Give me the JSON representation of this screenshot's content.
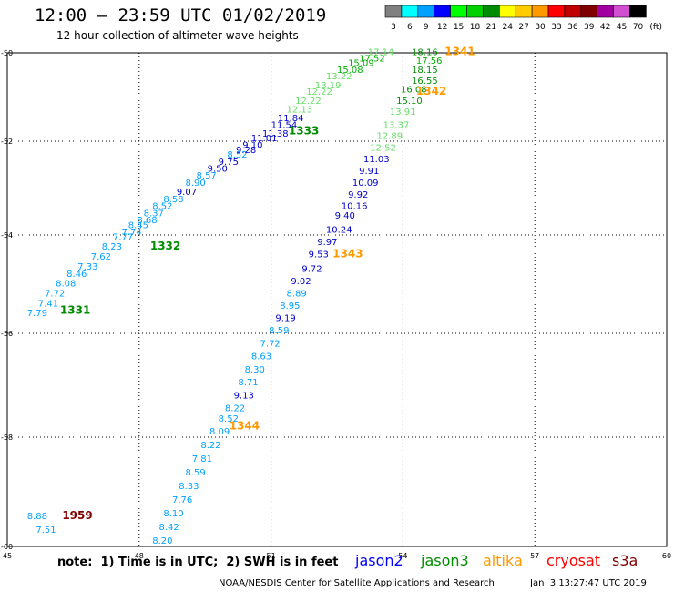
{
  "header": {
    "title": "12:00 — 23:59 UTC 01/02/2019",
    "subtitle": "12 hour collection of altimeter wave heights"
  },
  "colorbar": {
    "unit_label": "(ft)",
    "bins": [
      {
        "label": "3",
        "color": "#808080"
      },
      {
        "label": "6",
        "color": "#00ffff"
      },
      {
        "label": "9",
        "color": "#00a0ff"
      },
      {
        "label": "12",
        "color": "#0000ff"
      },
      {
        "label": "15",
        "color": "#00ff00"
      },
      {
        "label": "18",
        "color": "#00d000"
      },
      {
        "label": "21",
        "color": "#008c00"
      },
      {
        "label": "24",
        "color": "#ffff00"
      },
      {
        "label": "27",
        "color": "#ffcc00"
      },
      {
        "label": "30",
        "color": "#ff9900"
      },
      {
        "label": "33",
        "color": "#ff0000"
      },
      {
        "label": "36",
        "color": "#c00000"
      },
      {
        "label": "39",
        "color": "#800000"
      },
      {
        "label": "42",
        "color": "#a000a0"
      },
      {
        "label": "45",
        "color": "#d050d0"
      },
      {
        "label": "70",
        "color": "#000000"
      }
    ]
  },
  "axes": {
    "lon_ticks": [
      "45",
      "48",
      "51",
      "54",
      "57",
      "60"
    ],
    "lat_ticks": [
      "-50",
      "-52",
      "-54",
      "-56",
      "-58",
      "-60"
    ]
  },
  "passes": [
    {
      "label": "1331",
      "color": "#008c00",
      "lon": 46.2,
      "lat": -55.6
    },
    {
      "label": "1332",
      "color": "#008c00",
      "lon": 48.25,
      "lat": -54.3
    },
    {
      "label": "1333",
      "color": "#008c00",
      "lon": 51.4,
      "lat": -51.85
    },
    {
      "label": "1341",
      "color": "#ff9900",
      "lon": 54.95,
      "lat": -50.05
    },
    {
      "label": "1342",
      "color": "#ff9900",
      "lon": 54.3,
      "lat": -50.95
    },
    {
      "label": "1343",
      "color": "#ff9900",
      "lon": 52.4,
      "lat": -54.45
    },
    {
      "label": "1344",
      "color": "#ff9900",
      "lon": 50.05,
      "lat": -57.85
    },
    {
      "label": "1959",
      "color": "#800000",
      "lon": 46.25,
      "lat": -59.5
    }
  ],
  "observations": [
    {
      "v": "7.79",
      "c": "#00a0ff",
      "lon": 45.45,
      "lat": -55.65
    },
    {
      "v": "7.41",
      "c": "#00a0ff",
      "lon": 45.7,
      "lat": -55.45
    },
    {
      "v": "7.72",
      "c": "#00a0ff",
      "lon": 45.85,
      "lat": -55.25
    },
    {
      "v": "8.08",
      "c": "#00a0ff",
      "lon": 46.1,
      "lat": -55.05
    },
    {
      "v": "8.46",
      "c": "#00a0ff",
      "lon": 46.35,
      "lat": -54.85
    },
    {
      "v": "7.33",
      "c": "#00a0ff",
      "lon": 46.6,
      "lat": -54.7
    },
    {
      "v": "7.62",
      "c": "#00a0ff",
      "lon": 46.9,
      "lat": -54.5
    },
    {
      "v": "8.23",
      "c": "#00a0ff",
      "lon": 47.15,
      "lat": -54.3
    },
    {
      "v": "7.77",
      "c": "#00a0ff",
      "lon": 47.4,
      "lat": -54.1
    },
    {
      "v": "7.74",
      "c": "#00a0ff",
      "lon": 47.6,
      "lat": -54.0
    },
    {
      "v": "8.45",
      "c": "#00a0ff",
      "lon": 47.75,
      "lat": -53.85
    },
    {
      "v": "8.68",
      "c": "#00a0ff",
      "lon": 47.95,
      "lat": -53.75
    },
    {
      "v": "8.37",
      "c": "#00a0ff",
      "lon": 48.1,
      "lat": -53.6
    },
    {
      "v": "8.52",
      "c": "#00a0ff",
      "lon": 48.3,
      "lat": -53.45
    },
    {
      "v": "8.58",
      "c": "#00a0ff",
      "lon": 48.55,
      "lat": -53.3
    },
    {
      "v": "9.07",
      "c": "#0000c8",
      "lon": 48.85,
      "lat": -53.15
    },
    {
      "v": "8.90",
      "c": "#00a0ff",
      "lon": 49.05,
      "lat": -52.95
    },
    {
      "v": "8.57",
      "c": "#00a0ff",
      "lon": 49.3,
      "lat": -52.8
    },
    {
      "v": "9.50",
      "c": "#0000c8",
      "lon": 49.55,
      "lat": -52.65
    },
    {
      "v": "9.75",
      "c": "#0000c8",
      "lon": 49.8,
      "lat": -52.5
    },
    {
      "v": "8.52",
      "c": "#00a0ff",
      "lon": 50.0,
      "lat": -52.35
    },
    {
      "v": "9.28",
      "c": "#0000c8",
      "lon": 50.2,
      "lat": -52.25
    },
    {
      "v": "9.10",
      "c": "#0000c8",
      "lon": 50.35,
      "lat": -52.15
    },
    {
      "v": "11.01",
      "c": "#0000c8",
      "lon": 50.55,
      "lat": -52.0
    },
    {
      "v": "11.38",
      "c": "#0000c8",
      "lon": 50.8,
      "lat": -51.9
    },
    {
      "v": "11.54",
      "c": "#0000c8",
      "lon": 51.0,
      "lat": -51.7
    },
    {
      "v": "11.84",
      "c": "#0000c8",
      "lon": 51.15,
      "lat": -51.55
    },
    {
      "v": "12.13",
      "c": "#66dd66",
      "lon": 51.35,
      "lat": -51.35
    },
    {
      "v": "12.22",
      "c": "#66dd66",
      "lon": 51.55,
      "lat": -51.15
    },
    {
      "v": "12.22",
      "c": "#66dd66",
      "lon": 51.8,
      "lat": -50.95
    },
    {
      "v": "13.19",
      "c": "#66dd66",
      "lon": 52.0,
      "lat": -50.8
    },
    {
      "v": "13.22",
      "c": "#66dd66",
      "lon": 52.25,
      "lat": -50.6
    },
    {
      "v": "15.08",
      "c": "#00b000",
      "lon": 52.5,
      "lat": -50.45
    },
    {
      "v": "15.09",
      "c": "#00b000",
      "lon": 52.75,
      "lat": -50.3
    },
    {
      "v": "17.52",
      "c": "#00b000",
      "lon": 53.0,
      "lat": -50.2
    },
    {
      "v": "17.14",
      "c": "#66dd66",
      "lon": 53.2,
      "lat": -50.05
    },
    {
      "v": "18.16",
      "c": "#008c00",
      "lon": 54.2,
      "lat": -50.05
    },
    {
      "v": "17.56",
      "c": "#00b000",
      "lon": 54.3,
      "lat": -50.25
    },
    {
      "v": "18.15",
      "c": "#008c00",
      "lon": 54.2,
      "lat": -50.45
    },
    {
      "v": "16.55",
      "c": "#008c00",
      "lon": 54.2,
      "lat": -50.7
    },
    {
      "v": "16.08",
      "c": "#008c00",
      "lon": 53.95,
      "lat": -50.9
    },
    {
      "v": "15.10",
      "c": "#008c00",
      "lon": 53.85,
      "lat": -51.15
    },
    {
      "v": "13.91",
      "c": "#66dd66",
      "lon": 53.7,
      "lat": -51.4
    },
    {
      "v": "13.37",
      "c": "#66dd66",
      "lon": 53.55,
      "lat": -51.7
    },
    {
      "v": "12.89",
      "c": "#66dd66",
      "lon": 53.4,
      "lat": -51.95
    },
    {
      "v": "12.52",
      "c": "#66dd66",
      "lon": 53.25,
      "lat": -52.2
    },
    {
      "v": "11.03",
      "c": "#0000c8",
      "lon": 53.1,
      "lat": -52.45
    },
    {
      "v": "9.91",
      "c": "#0000c8",
      "lon": 53.0,
      "lat": -52.7
    },
    {
      "v": "10.09",
      "c": "#0000c8",
      "lon": 52.85,
      "lat": -52.95
    },
    {
      "v": "9.92",
      "c": "#0000c8",
      "lon": 52.75,
      "lat": -53.2
    },
    {
      "v": "10.16",
      "c": "#0000c8",
      "lon": 52.6,
      "lat": -53.45
    },
    {
      "v": "9.40",
      "c": "#0000c8",
      "lon": 52.45,
      "lat": -53.65
    },
    {
      "v": "10.24",
      "c": "#0000c8",
      "lon": 52.25,
      "lat": -53.95
    },
    {
      "v": "9.97",
      "c": "#0000c8",
      "lon": 52.05,
      "lat": -54.2
    },
    {
      "v": "9.53",
      "c": "#0000c8",
      "lon": 51.85,
      "lat": -54.45
    },
    {
      "v": "9.72",
      "c": "#0000c8",
      "lon": 51.7,
      "lat": -54.75
    },
    {
      "v": "9.02",
      "c": "#0000c8",
      "lon": 51.45,
      "lat": -55.0
    },
    {
      "v": "8.89",
      "c": "#00a0ff",
      "lon": 51.35,
      "lat": -55.25
    },
    {
      "v": "8.95",
      "c": "#00a0ff",
      "lon": 51.2,
      "lat": -55.5
    },
    {
      "v": "9.19",
      "c": "#0000c8",
      "lon": 51.1,
      "lat": -55.75
    },
    {
      "v": "8.59",
      "c": "#00a0ff",
      "lon": 50.95,
      "lat": -56.0
    },
    {
      "v": "7.72",
      "c": "#00a0ff",
      "lon": 50.75,
      "lat": -56.25
    },
    {
      "v": "8.63",
      "c": "#00a0ff",
      "lon": 50.55,
      "lat": -56.5
    },
    {
      "v": "8.30",
      "c": "#00a0ff",
      "lon": 50.4,
      "lat": -56.75
    },
    {
      "v": "8.71",
      "c": "#00a0ff",
      "lon": 50.25,
      "lat": -57.0
    },
    {
      "v": "9.13",
      "c": "#0000c8",
      "lon": 50.15,
      "lat": -57.25
    },
    {
      "v": "8.22",
      "c": "#00a0ff",
      "lon": 49.95,
      "lat": -57.5
    },
    {
      "v": "8.52",
      "c": "#00a0ff",
      "lon": 49.8,
      "lat": -57.7
    },
    {
      "v": "8.09",
      "c": "#00a0ff",
      "lon": 49.6,
      "lat": -57.95
    },
    {
      "v": "8.22",
      "c": "#00a0ff",
      "lon": 49.4,
      "lat": -58.2
    },
    {
      "v": "7.81",
      "c": "#00a0ff",
      "lon": 49.2,
      "lat": -58.45
    },
    {
      "v": "8.59",
      "c": "#00a0ff",
      "lon": 49.05,
      "lat": -58.7
    },
    {
      "v": "8.33",
      "c": "#00a0ff",
      "lon": 48.9,
      "lat": -58.95
    },
    {
      "v": "7.76",
      "c": "#00a0ff",
      "lon": 48.75,
      "lat": -59.2
    },
    {
      "v": "8.10",
      "c": "#00a0ff",
      "lon": 48.55,
      "lat": -59.45
    },
    {
      "v": "8.42",
      "c": "#00a0ff",
      "lon": 48.45,
      "lat": -59.7
    },
    {
      "v": "8.20",
      "c": "#00a0ff",
      "lon": 48.3,
      "lat": -59.95
    },
    {
      "v": "8.88",
      "c": "#00a0ff",
      "lon": 45.45,
      "lat": -59.5
    },
    {
      "v": "7.51",
      "c": "#00a0ff",
      "lon": 45.65,
      "lat": -59.75
    }
  ],
  "footer": {
    "note": "note:  1) Time is in UTC;  2) SWH is in feet",
    "satellites": [
      {
        "name": "jason2",
        "color": "#0000ff"
      },
      {
        "name": "jason3",
        "color": "#008c00"
      },
      {
        "name": "altika",
        "color": "#ff9900"
      },
      {
        "name": "cryosat",
        "color": "#ff0000"
      },
      {
        "name": "s3a",
        "color": "#800000"
      }
    ],
    "credit": "NOAA/NESDIS Center for Satellite Applications and Research",
    "timestamp": "Jan  3 13:27:47 UTC 2019"
  }
}
